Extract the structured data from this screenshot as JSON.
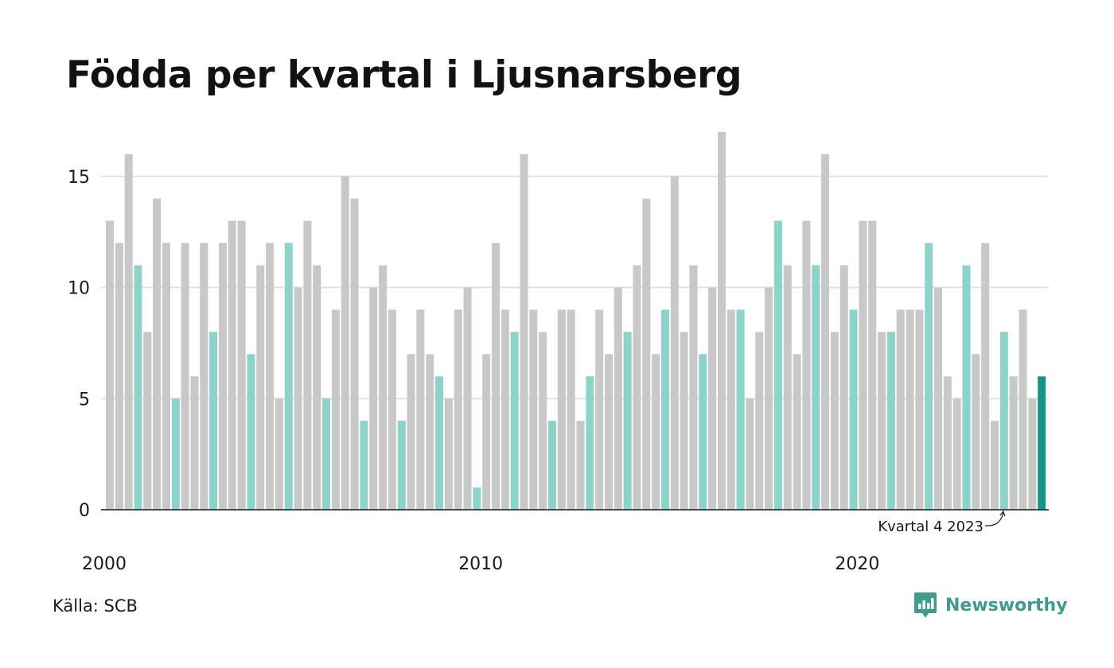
{
  "title": "Födda per kvartal i Ljusnarsberg",
  "source": "Källa: SCB",
  "logo_text": "Newsworthy",
  "logo_icon": "bar-chart-speech-bubble-icon",
  "colors": {
    "bar_default": "#c8c8c8",
    "bar_q4": "#8dd3ca",
    "bar_latest": "#1a9485",
    "grid": "#e1e1e1",
    "baseline": "#1a1a1a",
    "brand": "#3f9b8c"
  },
  "chart_data": {
    "type": "bar",
    "title": "Födda per kvartal i Ljusnarsberg",
    "xlabel": "",
    "ylabel": "",
    "ylim": [
      0,
      17
    ],
    "yticks": [
      0,
      5,
      10,
      15
    ],
    "xtick_labels": [
      "2000",
      "2010",
      "2020"
    ],
    "grid": true,
    "annotation": "Kvartal 4 2023",
    "first_period": "2000 Q1",
    "last_period": "2024 Q4",
    "values": [
      13,
      12,
      16,
      11,
      8,
      14,
      12,
      5,
      12,
      6,
      12,
      8,
      12,
      13,
      13,
      7,
      11,
      12,
      5,
      12,
      10,
      13,
      11,
      5,
      9,
      15,
      14,
      4,
      10,
      11,
      9,
      4,
      7,
      9,
      7,
      6,
      5,
      9,
      10,
      1,
      7,
      12,
      9,
      8,
      16,
      9,
      8,
      4,
      9,
      9,
      4,
      6,
      9,
      7,
      10,
      8,
      11,
      14,
      7,
      9,
      15,
      8,
      11,
      7,
      10,
      17,
      9,
      9,
      5,
      8,
      10,
      13,
      11,
      7,
      13,
      11,
      16,
      8,
      11,
      9,
      13,
      13,
      8,
      8,
      9,
      9,
      9,
      12,
      10,
      6,
      5,
      11,
      7,
      12,
      4,
      8,
      6,
      9,
      5,
      6
    ]
  }
}
